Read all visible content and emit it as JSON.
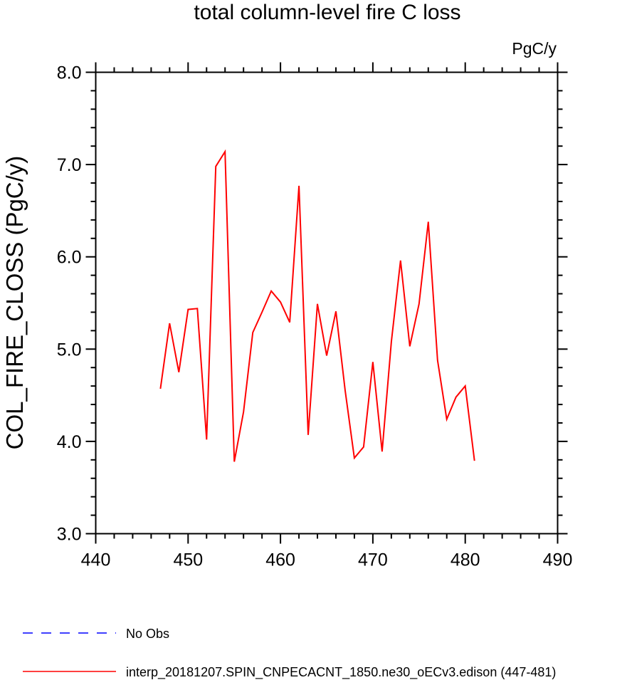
{
  "chart_data": {
    "type": "line",
    "title": "total column-level fire C loss",
    "units_label": "PgC/y",
    "xlabel": "",
    "ylabel": "COL_FIRE_CLOSS  (PgC/y)",
    "xlim": [
      440,
      490
    ],
    "ylim": [
      3.0,
      8.0
    ],
    "x_ticks": [
      440,
      450,
      460,
      470,
      480,
      490
    ],
    "x_tick_labels": [
      "440",
      "450",
      "460",
      "470",
      "480",
      "490"
    ],
    "y_ticks": [
      3.0,
      4.0,
      5.0,
      6.0,
      7.0,
      8.0
    ],
    "y_tick_labels": [
      "3.0",
      "4.0",
      "5.0",
      "6.0",
      "7.0",
      "8.0"
    ],
    "grid": false,
    "legend_position": "bottom-left",
    "series": [
      {
        "name": "No Obs",
        "color": "#0000ff",
        "dash": "dashed",
        "x": [],
        "y": []
      },
      {
        "name": "interp_20181207.SPIN_CNPECACNT_1850.ne30_oECv3.edison (447-481)",
        "color": "#ff0000",
        "dash": "solid",
        "x": [
          447,
          448,
          449,
          450,
          451,
          452,
          453,
          454,
          455,
          456,
          457,
          458,
          459,
          460,
          461,
          462,
          463,
          464,
          465,
          466,
          467,
          468,
          469,
          470,
          471,
          472,
          473,
          474,
          475,
          476,
          477,
          478,
          479,
          480,
          481
        ],
        "y": [
          4.57,
          5.28,
          4.75,
          5.43,
          5.44,
          4.02,
          6.98,
          7.14,
          3.78,
          4.32,
          5.18,
          5.4,
          5.63,
          5.51,
          5.29,
          6.77,
          4.07,
          5.49,
          4.93,
          5.41,
          4.55,
          3.82,
          3.94,
          4.86,
          3.89,
          5.08,
          5.96,
          5.03,
          5.49,
          6.38,
          4.88,
          4.24,
          4.48,
          4.6,
          3.79
        ]
      }
    ]
  }
}
